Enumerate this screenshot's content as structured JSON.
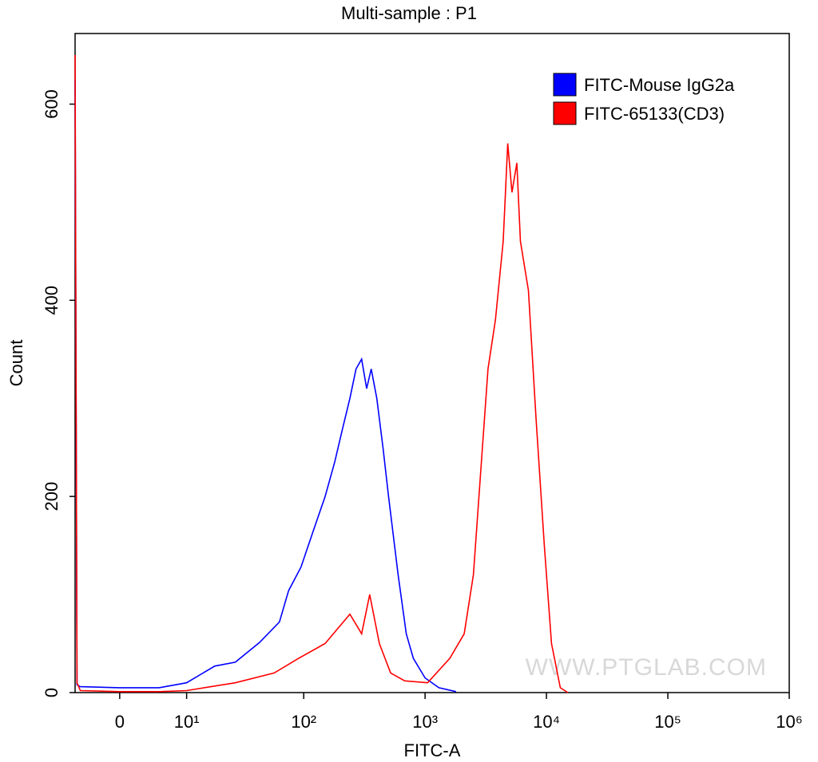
{
  "chart_data": {
    "type": "line",
    "title": "Multi-sample : P1",
    "xlabel": "FITC-A",
    "ylabel": "Count",
    "xscale": "biexponential",
    "watermark": "WWW.PTGLAB.COM",
    "legend": "upper-right",
    "xlim": [
      -5.8,
      1000000
    ],
    "ylim": [
      0,
      672
    ],
    "xticks": [
      0,
      {
        "value": 10,
        "label": "10¹"
      },
      {
        "value": 100,
        "label": "10²"
      },
      {
        "value": 1000,
        "label": "10³"
      },
      {
        "value": 10000,
        "label": "10⁴"
      },
      {
        "value": 100000,
        "label": "10⁵"
      },
      {
        "value": 1000000,
        "label": "10⁶"
      }
    ],
    "yticks": [
      0,
      200,
      400,
      600
    ],
    "series": [
      {
        "name": "FITC-Mouse IgG2a",
        "color": "#0000ff",
        "x": [
          -5.8,
          -5.5,
          -5,
          0,
          5,
          10,
          18,
          27,
          43,
          63,
          75,
          95,
          120,
          150,
          180,
          210,
          240,
          270,
          300,
          330,
          360,
          400,
          450,
          500,
          600,
          700,
          800,
          1000,
          1300,
          1800
        ],
        "values": [
          625,
          8,
          6,
          5,
          5,
          10,
          27,
          31,
          51,
          72,
          104,
          128,
          165,
          200,
          235,
          270,
          300,
          330,
          340,
          310,
          330,
          300,
          250,
          200,
          120,
          60,
          35,
          15,
          5,
          1
        ]
      },
      {
        "name": "FITC-65133(CD3)",
        "color": "#ff0000",
        "x": [
          -5.8,
          -5.5,
          -5,
          0,
          5,
          10,
          27,
          57,
          91,
          150,
          240,
          300,
          350,
          420,
          520,
          680,
          1050,
          1600,
          2100,
          2500,
          3300,
          3800,
          4400,
          4800,
          5200,
          5700,
          6100,
          7100,
          8200,
          9600,
          11000,
          13000,
          15000
        ],
        "values": [
          650,
          10,
          2,
          1,
          1,
          2,
          10,
          20,
          35,
          50,
          80,
          60,
          100,
          50,
          20,
          12,
          10,
          35,
          60,
          120,
          330,
          380,
          460,
          560,
          510,
          540,
          460,
          410,
          280,
          150,
          50,
          5,
          0
        ]
      }
    ]
  }
}
